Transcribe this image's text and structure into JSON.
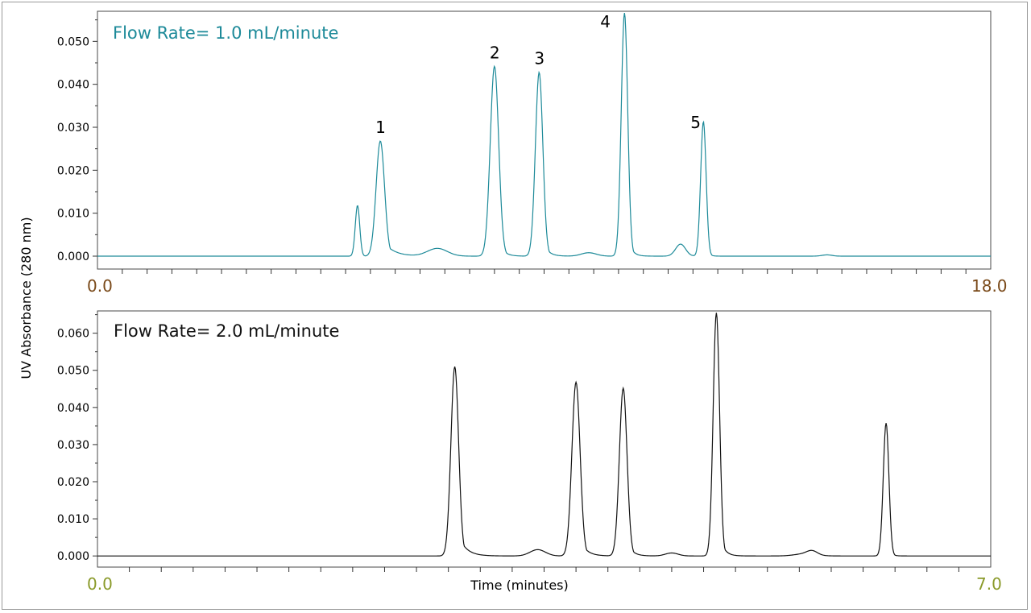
{
  "ylabel": "UV Absorbance (280 nm)",
  "xlabel": "Time (minutes)",
  "chart_data": [
    {
      "type": "line",
      "title": "Flow Rate= 1.0 mL/minute",
      "title_color": "#1d8a99",
      "line_color": "#1d8a99",
      "xlim": [
        0,
        18
      ],
      "x_end_labels": [
        "0.0",
        "18.0"
      ],
      "x_end_label_color": "#7a4a1a",
      "ylim": [
        -0.003,
        0.057
      ],
      "yticks": [
        0.0,
        0.01,
        0.02,
        0.03,
        0.04,
        0.05
      ],
      "ytick_labels": [
        "0.000",
        "0.010",
        "0.020",
        "0.030",
        "0.040",
        "0.050"
      ],
      "peaks": [
        {
          "t": 5.24,
          "h": 0.0118,
          "w": 0.045
        },
        {
          "t": 5.7,
          "h": 0.0268,
          "w": 0.085,
          "tail": 0.2
        },
        {
          "t": 6.85,
          "h": 0.0018,
          "w": 0.2
        },
        {
          "t": 8.0,
          "h": 0.0442,
          "w": 0.085,
          "tail": 0.1
        },
        {
          "t": 8.9,
          "h": 0.0428,
          "w": 0.075,
          "tail": 0.1
        },
        {
          "t": 9.9,
          "h": 0.0008,
          "w": 0.15
        },
        {
          "t": 10.62,
          "h": 0.0566,
          "w": 0.065,
          "tail": 0.08
        },
        {
          "t": 11.75,
          "h": 0.0028,
          "w": 0.1
        },
        {
          "t": 12.21,
          "h": 0.0313,
          "w": 0.055,
          "tail": 0.05
        },
        {
          "t": 14.7,
          "h": 0.0003,
          "w": 0.1
        }
      ],
      "peak_labels": [
        {
          "label": "1",
          "t": 5.7,
          "h": 0.0268
        },
        {
          "label": "2",
          "t": 8.0,
          "h": 0.0442
        },
        {
          "label": "3",
          "t": 8.9,
          "h": 0.0428
        },
        {
          "label": "4",
          "t": 10.62,
          "h": 0.0566
        },
        {
          "label": "5",
          "t": 12.21,
          "h": 0.0313
        }
      ]
    },
    {
      "type": "line",
      "title": "Flow Rate= 2.0 mL/minute",
      "title_color": "#111111",
      "line_color": "#111111",
      "xlim": [
        0,
        7
      ],
      "x_end_labels": [
        "0.0",
        "7.0"
      ],
      "x_end_label_color": "#8a9a2a",
      "ylim": [
        -0.003,
        0.066
      ],
      "yticks": [
        0.0,
        0.01,
        0.02,
        0.03,
        0.04,
        0.05,
        0.06
      ],
      "ytick_labels": [
        "0.000",
        "0.010",
        "0.020",
        "0.030",
        "0.040",
        "0.050",
        "0.060"
      ],
      "peaks": [
        {
          "t": 2.8,
          "h": 0.051,
          "w": 0.03,
          "tail": 0.06
        },
        {
          "t": 3.45,
          "h": 0.0017,
          "w": 0.06
        },
        {
          "t": 3.75,
          "h": 0.0468,
          "w": 0.032,
          "tail": 0.05
        },
        {
          "t": 4.12,
          "h": 0.0452,
          "w": 0.03,
          "tail": 0.04
        },
        {
          "t": 4.5,
          "h": 0.0008,
          "w": 0.05
        },
        {
          "t": 4.85,
          "h": 0.0655,
          "w": 0.025,
          "tail": 0.035
        },
        {
          "t": 5.55,
          "h": 0.0006,
          "w": 0.08
        },
        {
          "t": 5.6,
          "h": 0.001,
          "w": 0.04
        },
        {
          "t": 6.18,
          "h": 0.0358,
          "w": 0.022,
          "tail": 0.02
        }
      ],
      "peak_labels": []
    }
  ]
}
